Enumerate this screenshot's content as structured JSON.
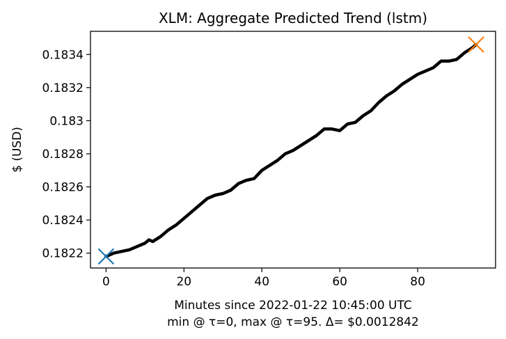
{
  "chart_data": {
    "type": "line",
    "title": "XLM: Aggregate Predicted Trend (lstm)",
    "xlabel": "Minutes since 2022-01-22 10:45:00 UTC",
    "xlabel_line2": "min @ τ=0, max @ τ=95. Δ= $0.0012842",
    "ylabel": "$ (USD)",
    "xlim": [
      -4,
      100
    ],
    "ylim": [
      0.18211,
      0.18354
    ],
    "xticks": [
      0,
      20,
      40,
      60,
      80
    ],
    "xtick_labels": [
      "0",
      "20",
      "40",
      "60",
      "80"
    ],
    "yticks": [
      0.1822,
      0.1824,
      0.1826,
      0.1828,
      0.183,
      0.1832,
      0.1834
    ],
    "ytick_labels": [
      "0.1822",
      "0.1824",
      "0.1826",
      "0.1828",
      "0.183",
      "0.1832",
      "0.1834"
    ],
    "grid": false,
    "series": [
      {
        "color": "#000000",
        "x": [
          0,
          2,
          4,
          6,
          8,
          10,
          11,
          12,
          14,
          16,
          18,
          20,
          22,
          24,
          26,
          28,
          30,
          32,
          34,
          36,
          38,
          40,
          42,
          44,
          46,
          48,
          50,
          52,
          54,
          56,
          58,
          60,
          62,
          64,
          66,
          68,
          70,
          72,
          74,
          76,
          78,
          80,
          82,
          84,
          86,
          88,
          90,
          92,
          94,
          95
        ],
        "y": [
          0.18218,
          0.1822,
          0.18221,
          0.18222,
          0.18224,
          0.18226,
          0.18228,
          0.18227,
          0.1823,
          0.18234,
          0.18237,
          0.18241,
          0.18245,
          0.18249,
          0.18253,
          0.18255,
          0.18256,
          0.18258,
          0.18262,
          0.18264,
          0.18265,
          0.1827,
          0.18273,
          0.18276,
          0.1828,
          0.18282,
          0.18285,
          0.18288,
          0.18291,
          0.18295,
          0.18295,
          0.18294,
          0.18298,
          0.18299,
          0.18303,
          0.18306,
          0.18311,
          0.18315,
          0.18318,
          0.18322,
          0.18325,
          0.18328,
          0.1833,
          0.18332,
          0.18336,
          0.18336,
          0.18337,
          0.18341,
          0.18344,
          0.18346
        ]
      }
    ],
    "markers": [
      {
        "x": 0,
        "y": 0.18218,
        "color": "#1f77b4",
        "symbol": "x"
      },
      {
        "x": 95,
        "y": 0.18346,
        "color": "#ff7f0e",
        "symbol": "x"
      }
    ]
  }
}
